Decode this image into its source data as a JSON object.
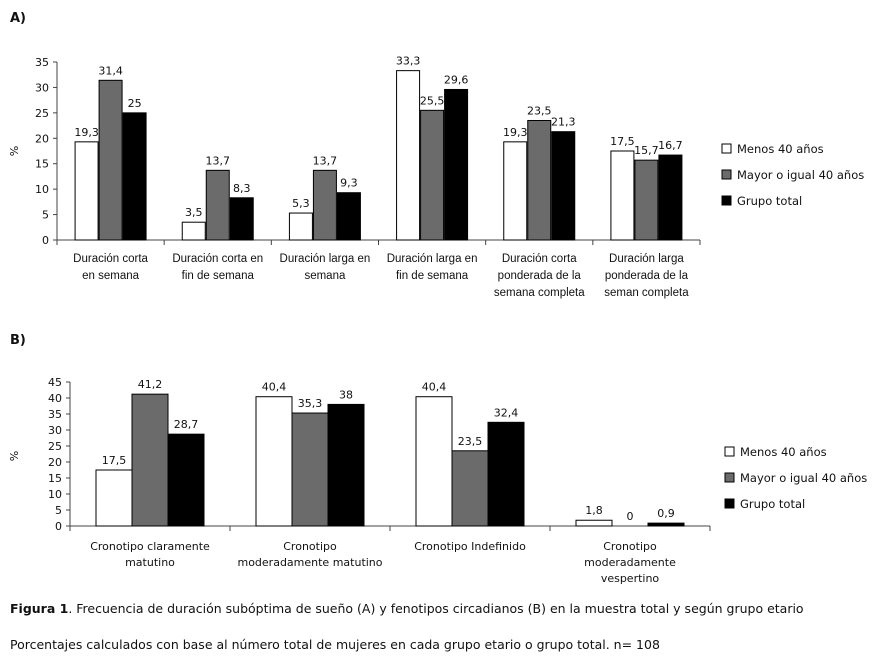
{
  "colors": {
    "series": [
      "#ffffff",
      "#6b6b6b",
      "#000000"
    ],
    "stroke": "#000000"
  },
  "chart_data": [
    {
      "panel": "A)",
      "type": "bar",
      "ylabel": "%",
      "ylim": [
        0,
        35
      ],
      "yticks": [
        0,
        5,
        10,
        15,
        20,
        25,
        30,
        35
      ],
      "categories": [
        [
          "Duración corta",
          "en semana"
        ],
        [
          "Duración  corta en",
          "fin de semana"
        ],
        [
          "Duración larga en",
          "semana"
        ],
        [
          "Duración larga en",
          "fin de semana"
        ],
        [
          "Duración corta",
          "ponderada de la",
          "semana completa"
        ],
        [
          "Duración larga",
          "ponderada de la",
          "seman completa"
        ]
      ],
      "series": [
        {
          "name": "Menos 40 años",
          "values": [
            19.3,
            3.5,
            5.3,
            33.3,
            19.3,
            17.5
          ],
          "labels": [
            "19,3",
            "3,5",
            "5,3",
            "33,3",
            "19,3",
            "17,5"
          ]
        },
        {
          "name": "Mayor o igual 40 años",
          "values": [
            31.4,
            13.7,
            13.7,
            25.5,
            23.5,
            15.7
          ],
          "labels": [
            "31,4",
            "13,7",
            "13,7",
            "25,5",
            "23,5",
            "15,7"
          ]
        },
        {
          "name": "Grupo total",
          "values": [
            25,
            8.3,
            9.3,
            29.6,
            21.3,
            16.7
          ],
          "labels": [
            "25",
            "8,3",
            "9,3",
            "29,6",
            "21,3",
            "16,7"
          ]
        }
      ],
      "legend": "right"
    },
    {
      "panel": "B)",
      "type": "bar",
      "ylabel": "%",
      "ylim": [
        0,
        45
      ],
      "yticks": [
        0,
        5,
        10,
        15,
        20,
        25,
        30,
        35,
        40,
        45
      ],
      "categories": [
        [
          "Cronotipo claramente",
          "matutino"
        ],
        [
          "Cronotipo",
          "moderadamente matutino"
        ],
        [
          "Cronotipo Indefinido"
        ],
        [
          "Cronotipo",
          "moderadamente",
          "vespertino"
        ]
      ],
      "series": [
        {
          "name": "Menos 40 años",
          "values": [
            17.5,
            40.4,
            40.4,
            1.8
          ],
          "labels": [
            "17,5",
            "40,4",
            "40,4",
            "1,8"
          ]
        },
        {
          "name": "Mayor o igual 40 años",
          "values": [
            41.2,
            35.3,
            23.5,
            0
          ],
          "labels": [
            "41,2",
            "35,3",
            "23,5",
            "0"
          ]
        },
        {
          "name": "Grupo total",
          "values": [
            28.7,
            38,
            32.4,
            0.9
          ],
          "labels": [
            "28,7",
            "38",
            "32,4",
            "0,9"
          ]
        }
      ],
      "legend": "right"
    }
  ],
  "caption": {
    "figure_label": "Figura 1",
    "figure_text": ". Frecuencia de duración subóptima de sueño (A) y fenotipos circadianos (B) en la muestra total y según grupo etario",
    "note": "Porcentajes calculados con base al número total de mujeres en cada grupo etario o grupo total. n= 108"
  }
}
